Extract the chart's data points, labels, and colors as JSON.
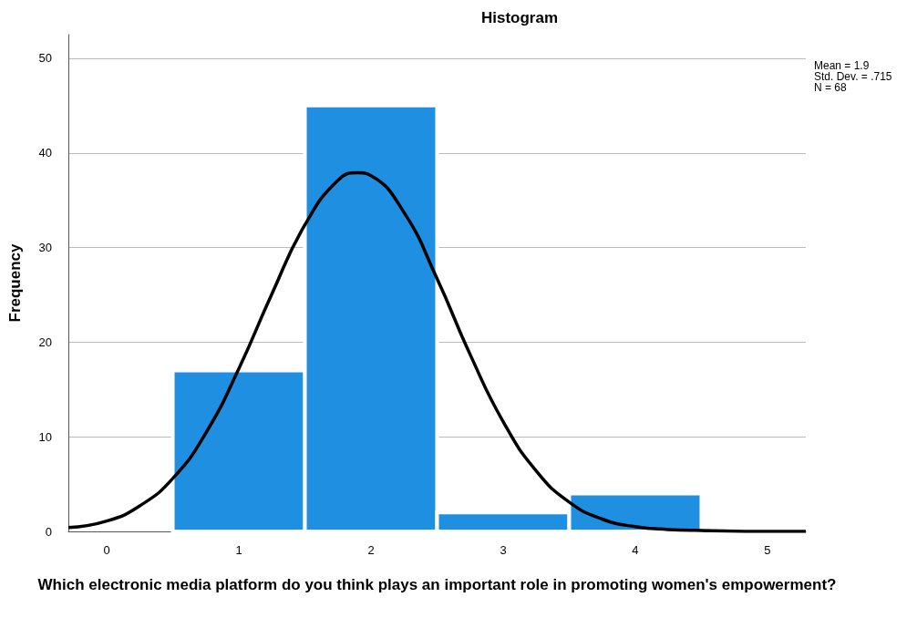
{
  "chart_data": {
    "type": "histogram",
    "title": "Histogram",
    "xlabel": "Which electronic media platform do you think plays an important role in promoting women's empowerment?",
    "ylabel": "Frequency",
    "bins": [
      0.5,
      1.5,
      2.5,
      3.5,
      4.5
    ],
    "values": [
      17,
      45,
      2,
      4
    ],
    "color": "#1e8fe1",
    "series": [
      {
        "type": "line",
        "color": "#000000",
        "x": [
          -0.29,
          0,
          0.25,
          0.5,
          0.75,
          1,
          1.25,
          1.5,
          1.75,
          1.9,
          2,
          2.25,
          2.5,
          2.75,
          3,
          3.25,
          3.5,
          3.75,
          4,
          4.25,
          4.5,
          5,
          5.29
        ],
        "values": [
          0.4,
          1.1,
          2.7,
          5.6,
          10.4,
          17.2,
          25.1,
          32.4,
          37.1,
          37.9,
          37.6,
          33.7,
          26.7,
          18.7,
          11.6,
          6.4,
          3.1,
          1.3,
          0.5,
          0.2,
          0.1,
          0,
          0
        ]
      }
    ],
    "xlim": [
      -0.29,
      5.29
    ],
    "xticks": [
      0,
      1,
      2,
      3,
      4,
      5
    ],
    "ylim": [
      0,
      52.5
    ],
    "yticks": [
      0,
      10,
      20,
      30,
      40,
      50
    ],
    "grid": "y",
    "marker": "none",
    "annotations": [
      "Mean = 1.9",
      "Std. Dev. = .715",
      "N = 68"
    ]
  }
}
